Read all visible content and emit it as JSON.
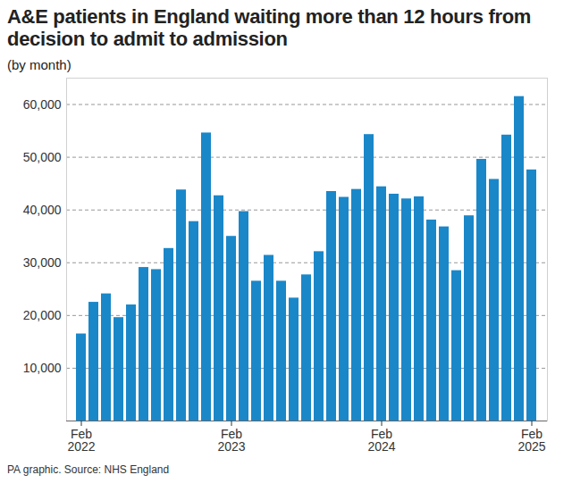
{
  "chart_data": {
    "type": "bar",
    "title": "A&E patients in England waiting more than 12 hours from decision to admit to admission",
    "subtitle": "(by month)",
    "caption": "PA graphic. Source: NHS England",
    "categories": [
      "Feb\n2022",
      null,
      null,
      null,
      null,
      null,
      null,
      null,
      null,
      null,
      null,
      null,
      "Feb\n2023",
      null,
      null,
      null,
      null,
      null,
      null,
      null,
      null,
      null,
      null,
      null,
      "Feb\n2024",
      null,
      null,
      null,
      null,
      null,
      null,
      null,
      null,
      null,
      null,
      null,
      "Feb\n2025"
    ],
    "values": [
      16500,
      22500,
      24100,
      19600,
      22000,
      29100,
      28700,
      32700,
      43800,
      37800,
      54600,
      42700,
      35000,
      39700,
      26500,
      31400,
      26500,
      23300,
      27700,
      32100,
      43500,
      42400,
      43900,
      54300,
      44400,
      43000,
      42100,
      42500,
      38100,
      36800,
      28500,
      38900,
      49600,
      45800,
      54200,
      61500,
      47600
    ],
    "color": "#1a87c9",
    "ylim": [
      0,
      65000
    ],
    "yticks": [
      {
        "value": 10000,
        "label": "10,000"
      },
      {
        "value": 20000,
        "label": "20,000"
      },
      {
        "value": 30000,
        "label": "30,000"
      },
      {
        "value": 40000,
        "label": "40,000"
      },
      {
        "value": 50000,
        "label": "50,000"
      },
      {
        "value": 60000,
        "label": "60,000"
      }
    ],
    "grid": true
  }
}
